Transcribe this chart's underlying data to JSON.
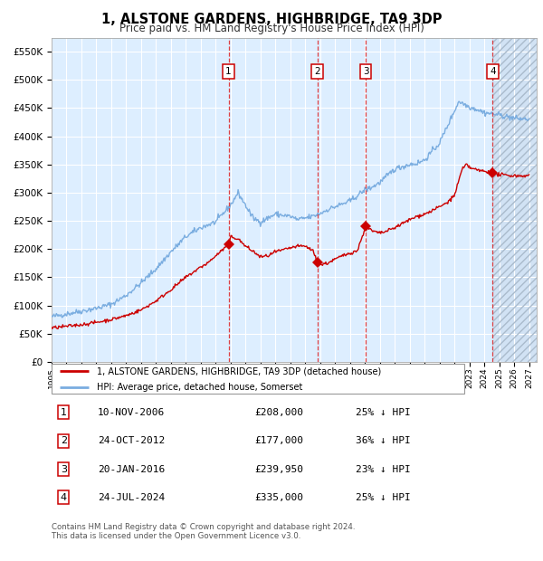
{
  "title": "1, ALSTONE GARDENS, HIGHBRIDGE, TA9 3DP",
  "subtitle": "Price paid vs. HM Land Registry's House Price Index (HPI)",
  "legend_line1": "1, ALSTONE GARDENS, HIGHBRIDGE, TA9 3DP (detached house)",
  "legend_line2": "HPI: Average price, detached house, Somerset",
  "footer1": "Contains HM Land Registry data © Crown copyright and database right 2024.",
  "footer2": "This data is licensed under the Open Government Licence v3.0.",
  "transactions": [
    {
      "num": 1,
      "date": "10-NOV-2006",
      "price": 208000,
      "hpi_pct": "25% ↓ HPI",
      "date_dec": 2006.86
    },
    {
      "num": 2,
      "date": "24-OCT-2012",
      "price": 177000,
      "hpi_pct": "36% ↓ HPI",
      "date_dec": 2012.81
    },
    {
      "num": 3,
      "date": "20-JAN-2016",
      "price": 239950,
      "hpi_pct": "23% ↓ HPI",
      "date_dec": 2016.05
    },
    {
      "num": 4,
      "date": "24-JUL-2024",
      "price": 335000,
      "hpi_pct": "25% ↓ HPI",
      "date_dec": 2024.56
    }
  ],
  "red_line_color": "#cc0000",
  "blue_line_color": "#7aade0",
  "bg_color": "#ddeeff",
  "grid_color": "#ffffff",
  "dashed_line_color": "#dd2222",
  "marker_color": "#cc0000",
  "ylim": [
    0,
    575000
  ],
  "yticks": [
    0,
    50000,
    100000,
    150000,
    200000,
    250000,
    300000,
    350000,
    400000,
    450000,
    500000,
    550000
  ],
  "xstart": 1995.0,
  "xend": 2027.5,
  "table_rows": [
    [
      "1",
      "10-NOV-2006",
      "£208,000",
      "25% ↓ HPI"
    ],
    [
      "2",
      "24-OCT-2012",
      "£177,000",
      "36% ↓ HPI"
    ],
    [
      "3",
      "20-JAN-2016",
      "£239,950",
      "23% ↓ HPI"
    ],
    [
      "4",
      "24-JUL-2024",
      "£335,000",
      "25% ↓ HPI"
    ]
  ]
}
